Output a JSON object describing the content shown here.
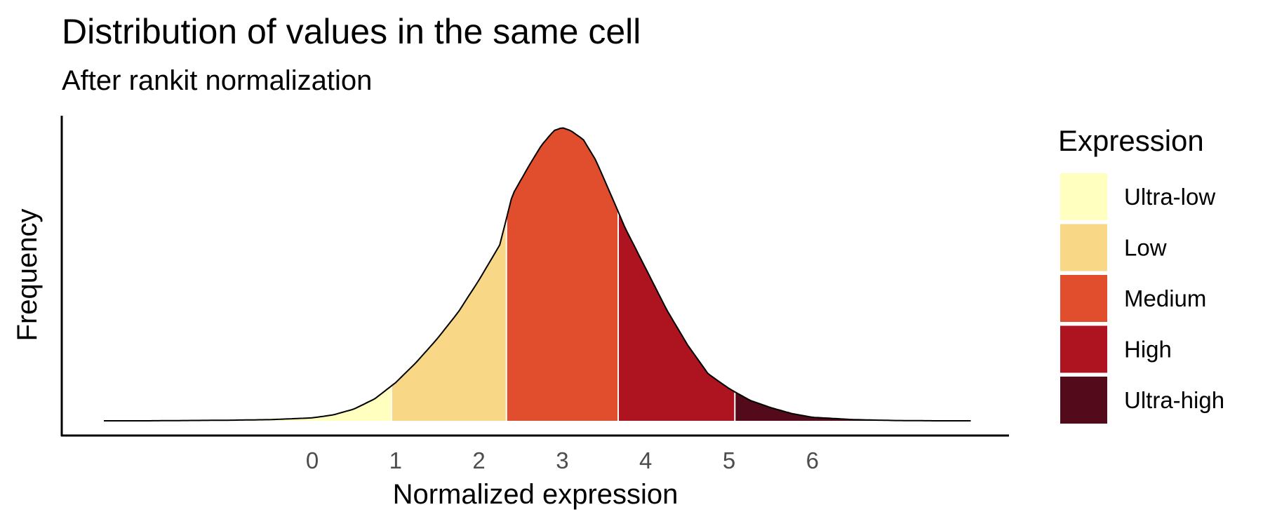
{
  "chart_data": {
    "type": "area",
    "title": "Distribution of values in the same cell",
    "subtitle": "After rankit normalization",
    "xlabel": "Normalized expression",
    "ylabel": "Frequency",
    "xlim": [
      -2.5,
      8.0
    ],
    "x_ticks": [
      "0",
      "1",
      "2",
      "3",
      "4",
      "5",
      "6"
    ],
    "density": {
      "x": [
        -2.5,
        -2.0,
        -1.5,
        -1.0,
        -0.5,
        0.0,
        0.25,
        0.5,
        0.75,
        1.0,
        1.25,
        1.5,
        1.75,
        2.0,
        2.25,
        2.4,
        2.6,
        2.75,
        2.9,
        3.0,
        3.1,
        3.25,
        3.4,
        3.6,
        3.75,
        4.0,
        4.25,
        4.5,
        4.75,
        5.0,
        5.25,
        5.5,
        5.75,
        6.0,
        6.5,
        7.0,
        7.5,
        7.9
      ],
      "y": [
        0.0,
        0.0,
        0.001,
        0.002,
        0.004,
        0.01,
        0.02,
        0.04,
        0.075,
        0.13,
        0.2,
        0.28,
        0.37,
        0.48,
        0.6,
        0.77,
        0.87,
        0.94,
        0.99,
        1.0,
        0.99,
        0.96,
        0.89,
        0.76,
        0.66,
        0.52,
        0.38,
        0.26,
        0.16,
        0.11,
        0.07,
        0.045,
        0.025,
        0.012,
        0.004,
        0.001,
        0.0,
        0.0
      ]
    },
    "bins": [
      {
        "name": "Ultra-low",
        "from": -2.5,
        "to": 0.95,
        "color": "#FFFFBF"
      },
      {
        "name": "Low",
        "from": 0.95,
        "to": 2.33,
        "color": "#F8D786"
      },
      {
        "name": "Medium",
        "from": 2.33,
        "to": 3.67,
        "color": "#E04E2E"
      },
      {
        "name": "High",
        "from": 3.67,
        "to": 5.07,
        "color": "#AD141F"
      },
      {
        "name": "Ultra-high",
        "from": 5.07,
        "to": 7.9,
        "color": "#530A1A"
      }
    ],
    "legend": {
      "title": "Expression",
      "position": "right",
      "entries": [
        "Ultra-low",
        "Low",
        "Medium",
        "High",
        "Ultra-high"
      ]
    },
    "grid": false
  }
}
